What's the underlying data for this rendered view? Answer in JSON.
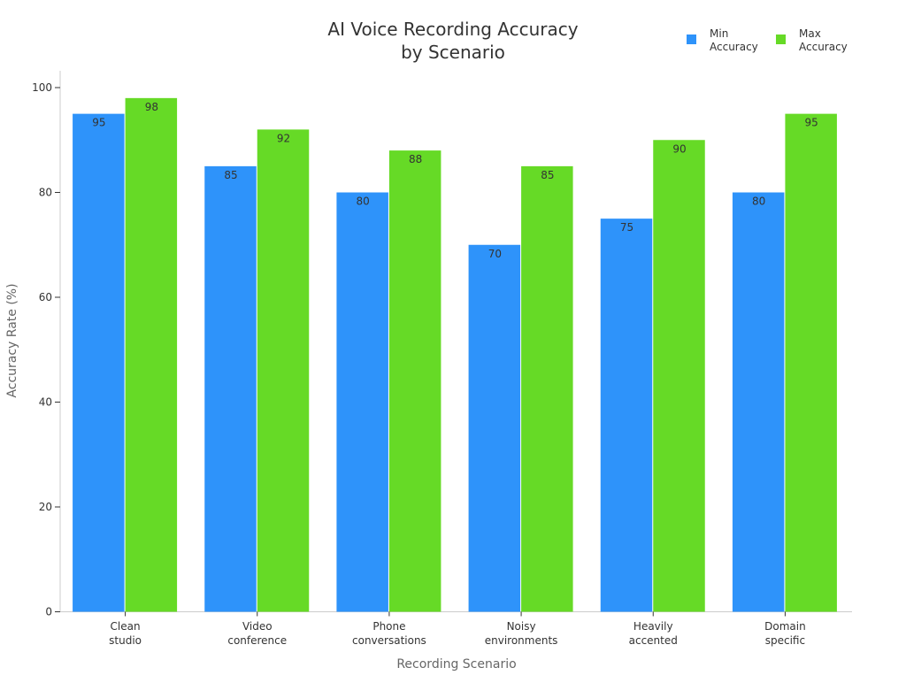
{
  "chart_data": {
    "type": "bar",
    "title_lines": [
      "AI Voice Recording Accuracy",
      "by Scenario"
    ],
    "xlabel": "Recording Scenario",
    "ylabel": "Accuracy Rate (%)",
    "ylim": [
      0,
      100
    ],
    "yticks": [
      0,
      20,
      40,
      60,
      80,
      100
    ],
    "grid": false,
    "legend_position": "top-right",
    "categories": [
      [
        "Clean",
        "studio"
      ],
      [
        "Video",
        "conference"
      ],
      [
        "Phone",
        "conversations"
      ],
      [
        "Noisy",
        "environments"
      ],
      [
        "Heavily",
        "accented"
      ],
      [
        "Domain",
        "specific"
      ]
    ],
    "series": [
      {
        "name": "Min Accuracy",
        "legend_lines": [
          "Min",
          "Accuracy"
        ],
        "color": "#2E93FA",
        "values": [
          95,
          85,
          80,
          70,
          75,
          80
        ]
      },
      {
        "name": "Max Accuracy",
        "legend_lines": [
          "Max",
          "Accuracy"
        ],
        "color": "#66DA26",
        "values": [
          98,
          92,
          88,
          85,
          90,
          95
        ]
      }
    ]
  }
}
